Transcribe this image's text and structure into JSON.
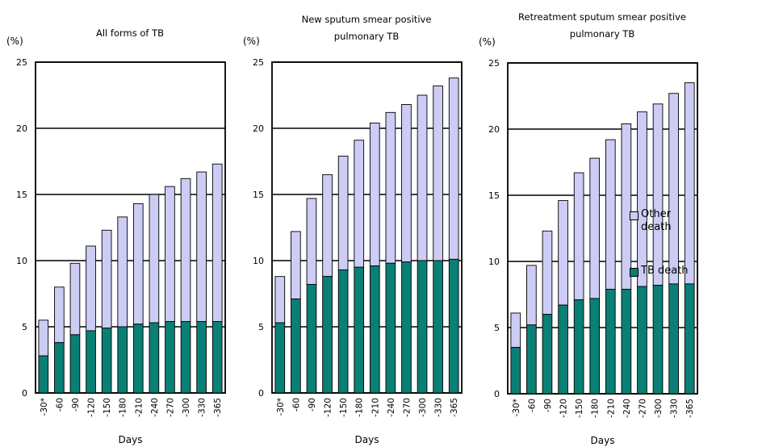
{
  "x_label": "Days",
  "y_unit": "(%)",
  "colors": {
    "other_death": "#ccccf5",
    "tb_death": "#0a7f74",
    "grid": "#000000"
  },
  "legend": [
    {
      "key": "other",
      "label": "Other death",
      "color": "#ccccf5"
    },
    {
      "key": "tb",
      "label": "TB death",
      "color": "#0a7f74"
    }
  ],
  "chart_data": [
    {
      "type": "bar",
      "stacked": true,
      "title_lines": [
        "All forms of TB"
      ],
      "categories": [
        "-30*",
        "-60",
        "-90",
        "-120",
        "-150",
        "-180",
        "-210",
        "-240",
        "-270",
        "-300",
        "-330",
        "-365"
      ],
      "ylim": [
        0,
        25
      ],
      "yticks": [
        0,
        5,
        10,
        15,
        20,
        25
      ],
      "xlabel": "Days",
      "ylabel": "(%)",
      "series": [
        {
          "name": "TB death",
          "values": [
            2.8,
            3.8,
            4.4,
            4.7,
            4.9,
            5.0,
            5.2,
            5.3,
            5.4,
            5.4,
            5.4,
            5.4
          ]
        },
        {
          "name": "Other death",
          "values": [
            2.7,
            4.2,
            5.4,
            6.4,
            7.4,
            8.3,
            9.1,
            9.7,
            10.2,
            10.8,
            11.3,
            11.9
          ]
        }
      ]
    },
    {
      "type": "bar",
      "stacked": true,
      "title_lines": [
        "New sputum smear positive",
        "pulmonary TB"
      ],
      "categories": [
        "-30*",
        "-60",
        "-90",
        "-120",
        "-150",
        "-180",
        "-210",
        "-240",
        "-270",
        "-300",
        "-330",
        "-365"
      ],
      "ylim": [
        0,
        25
      ],
      "yticks": [
        0,
        5,
        10,
        15,
        20,
        25
      ],
      "xlabel": "Days",
      "ylabel": "(%)",
      "series": [
        {
          "name": "TB death",
          "values": [
            5.3,
            7.1,
            8.2,
            8.8,
            9.3,
            9.5,
            9.6,
            9.8,
            9.9,
            10.0,
            10.0,
            10.1
          ]
        },
        {
          "name": "Other death",
          "values": [
            3.5,
            5.1,
            6.5,
            7.7,
            8.6,
            9.6,
            10.8,
            11.4,
            11.9,
            12.5,
            13.2,
            13.7
          ]
        }
      ]
    },
    {
      "type": "bar",
      "stacked": true,
      "title_lines": [
        "Retreatment sputum smear positive",
        "pulmonary TB"
      ],
      "categories": [
        "-30*",
        "-60",
        "-90",
        "-120",
        "-150",
        "-180",
        "-210",
        "-240",
        "-270",
        "-300",
        "-330",
        "-365"
      ],
      "ylim": [
        0,
        25
      ],
      "yticks": [
        0,
        5,
        10,
        15,
        20,
        25
      ],
      "xlabel": "Days",
      "ylabel": "(%)",
      "series": [
        {
          "name": "TB death",
          "values": [
            3.5,
            5.2,
            6.0,
            6.7,
            7.1,
            7.2,
            7.9,
            7.9,
            8.1,
            8.2,
            8.3,
            8.3
          ]
        },
        {
          "name": "Other death",
          "values": [
            2.6,
            4.5,
            6.3,
            7.9,
            9.6,
            10.6,
            11.3,
            12.5,
            13.2,
            13.7,
            14.4,
            15.2
          ]
        }
      ]
    }
  ]
}
